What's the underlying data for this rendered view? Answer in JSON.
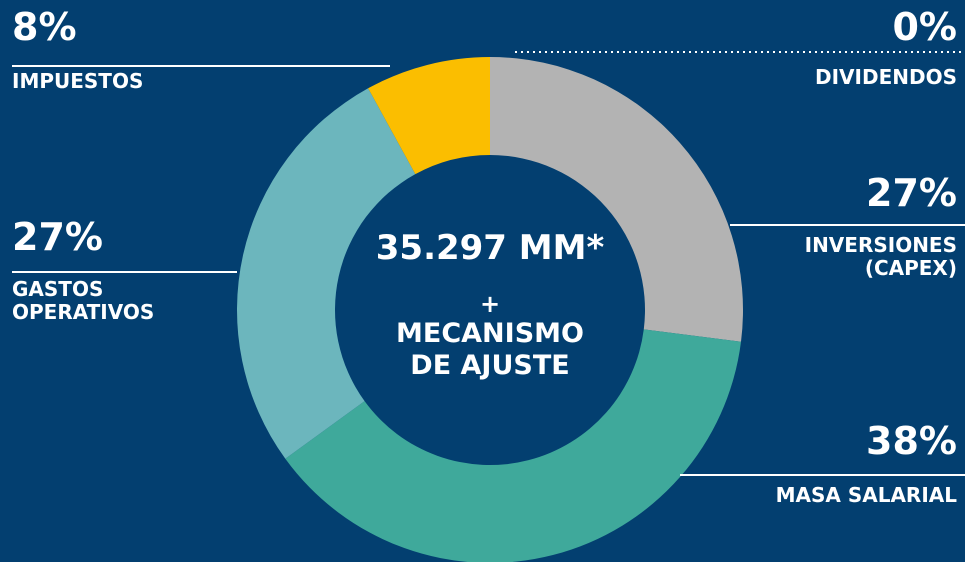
{
  "chart_data": {
    "type": "donut",
    "center_text": [
      "35.297 MM*",
      "+",
      "MECANISMO DE AJUSTE"
    ],
    "categories": [
      "INVERSIONES (CAPEX)",
      "MASA SALARIAL",
      "GASTOS OPERATIVOS",
      "IMPUESTOS",
      "DIVIDENDOS"
    ],
    "values": [
      27,
      38,
      27,
      8,
      0
    ],
    "value_labels": [
      "27%",
      "38%",
      "27%",
      "8%",
      "0%"
    ],
    "colors": [
      "#b3b3b3",
      "#3fa99b",
      "#6cb6bd",
      "#fbbe00",
      "#ffffff"
    ]
  }
}
